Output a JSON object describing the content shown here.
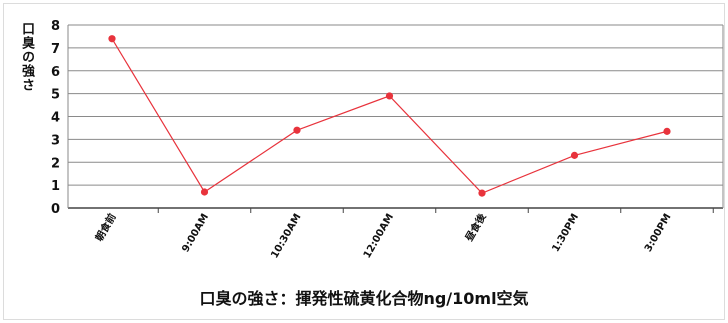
{
  "chart_data": {
    "type": "line",
    "title": "",
    "ylabel": "口臭の強さ",
    "xlabel": "口臭の強さ：揮発性硫黄化合物ng/10ml空気",
    "categories": [
      "朝食前",
      "9:00AM",
      "10:30AM",
      "12:00AM",
      "昼食後",
      "1:30PM",
      "3:00PM"
    ],
    "series": [
      {
        "values": [
          7.4,
          0.7,
          3.4,
          4.9,
          0.65,
          2.3,
          3.35
        ],
        "color": "#e8333c"
      }
    ],
    "ylim": [
      0,
      8
    ],
    "yticks": [
      0,
      1,
      2,
      3,
      4,
      5,
      6,
      7,
      8
    ],
    "grid": true,
    "legend": "none"
  }
}
